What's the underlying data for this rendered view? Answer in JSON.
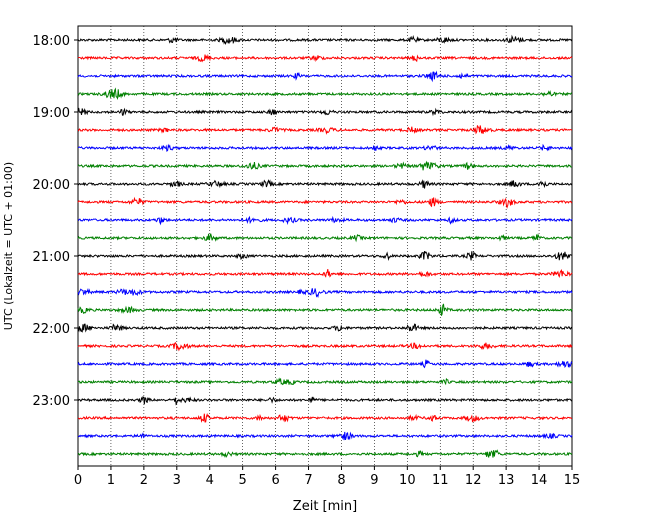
{
  "chart_data": {
    "type": "line",
    "xlabel": "Zeit  [min]",
    "ylabel": "UTC (Lokalzeit = UTC + 01:00)",
    "xlim": [
      0,
      15
    ],
    "x_ticks": [
      0,
      1,
      2,
      3,
      4,
      5,
      6,
      7,
      8,
      9,
      10,
      11,
      12,
      13,
      14,
      15
    ],
    "x_grid": "dotted vertical lines at each minute",
    "y_ticks": [
      "18:00",
      "19:00",
      "20:00",
      "21:00",
      "22:00",
      "23:00"
    ],
    "traces_per_hour": 4,
    "trace_minutes": 15,
    "trace_colors": [
      "#000000",
      "#ff0000",
      "#0000ff",
      "#008000"
    ],
    "traces": [
      "18:00",
      "18:15",
      "18:30",
      "18:45",
      "19:00",
      "19:15",
      "19:30",
      "19:45",
      "20:00",
      "20:15",
      "20:30",
      "20:45",
      "21:00",
      "21:15",
      "21:30",
      "21:45",
      "22:00",
      "22:15",
      "22:30",
      "22:45",
      "23:00",
      "23:15",
      "23:30",
      "23:45"
    ]
  }
}
